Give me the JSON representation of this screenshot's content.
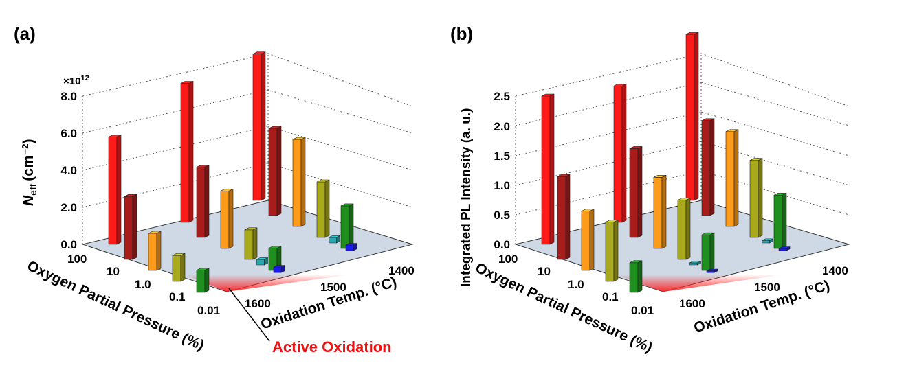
{
  "colors": {
    "1600": [
      "#ff1a1a",
      "#a81c1c",
      "#ff9b1a",
      "#a9a91c",
      "#1f8f1f"
    ],
    "1500": [
      "#ff1a1a",
      "#a81c1c",
      "#ff9b1a",
      "#a9a91c",
      "#1f8f1f"
    ],
    "1400": [
      "#ff1a1a",
      "#a81c1c",
      "#ff9b1a",
      "#a9a91c",
      "#1f8f1f"
    ],
    "small": [
      "#23a9b0",
      "#1a1aee"
    ],
    "floor": "#cfd9e6",
    "active": "#ff2020"
  },
  "annotation": {
    "text": "Active Oxidation"
  },
  "chart_data": [
    {
      "type": "bar3d",
      "panel_label": "(a)",
      "ylabel_main": "N",
      "ylabel_sub": "eff",
      "ylabel_unit": "(cm",
      "ylabel_exp": "−2",
      "ylabel_close": ")",
      "scale_base": "×10",
      "scale_exp": "12",
      "ylim": [
        0,
        8.0
      ],
      "yticks": [
        "0.0",
        "2.0",
        "4.0",
        "6.0",
        "8.0"
      ],
      "ytick_values": [
        0,
        2,
        4,
        6,
        8
      ],
      "x_title": "Oxygen Partial Pressure (%)",
      "z_title": "Oxidation Temp. (°C)",
      "x_categories": [
        "100",
        "10",
        "1.0",
        "0.1",
        "0.01"
      ],
      "z_categories": [
        "1600",
        "1500",
        "1400"
      ],
      "series": [
        {
          "temp": "1400",
          "values": [
            7.9,
            4.7,
            4.7,
            3.0,
            2.3
          ]
        },
        {
          "temp": "1500",
          "values": [
            7.5,
            3.8,
            3.1,
            1.6,
            1.2
          ]
        },
        {
          "temp": "1600",
          "values": [
            5.8,
            3.4,
            2.0,
            1.4,
            1.2
          ]
        }
      ],
      "small_bars": [
        {
          "temp": "1500",
          "values": [
            0.3,
            0.3
          ]
        },
        {
          "temp": "1400",
          "values": [
            0.3,
            0.3
          ]
        }
      ]
    },
    {
      "type": "bar3d",
      "panel_label": "(b)",
      "ylabel": "Integrated PL Intensity (a. u.)",
      "ylim": [
        0,
        2.5
      ],
      "yticks": [
        "0.0",
        "0.5",
        "1.0",
        "1.5",
        "2.0",
        "2.5"
      ],
      "ytick_values": [
        0,
        0.5,
        1.0,
        1.5,
        2.0,
        2.5
      ],
      "x_title": "Oxygen Partial Pressure (%)",
      "z_title": "Oxidation Temp. (°C)",
      "x_categories": [
        "100",
        "10",
        "1.0",
        "0.1",
        "0.01"
      ],
      "z_categories": [
        "1600",
        "1500",
        "1400"
      ],
      "series": [
        {
          "temp": "1400",
          "values": [
            2.8,
            1.6,
            1.6,
            1.3,
            0.9
          ]
        },
        {
          "temp": "1500",
          "values": [
            2.3,
            1.5,
            1.2,
            1.0,
            0.6
          ]
        },
        {
          "temp": "1600",
          "values": [
            2.5,
            1.4,
            1.0,
            1.0,
            0.5
          ]
        }
      ],
      "small_bars": [
        {
          "temp": "1500",
          "values": [
            0.3,
            0.25
          ]
        },
        {
          "temp": "1400",
          "values": [
            0.35,
            0.3
          ]
        }
      ]
    }
  ]
}
